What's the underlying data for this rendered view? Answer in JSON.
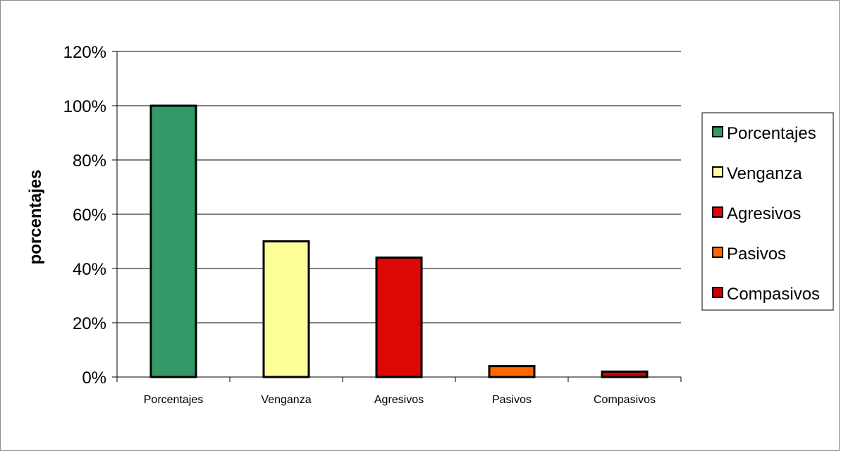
{
  "chart_data": {
    "type": "bar",
    "title": "",
    "xlabel": "",
    "ylabel": "porcentajes",
    "ylim": [
      0,
      1.2
    ],
    "y_ticks": [
      "0%",
      "20%",
      "40%",
      "60%",
      "80%",
      "100%",
      "120%"
    ],
    "y_tick_values": [
      0,
      0.2,
      0.4,
      0.6,
      0.8,
      1.0,
      1.2
    ],
    "grid": true,
    "legend_position": "right",
    "categories": [
      "Porcentajes",
      "Venganza",
      "Agresivos",
      "Pasivos",
      "Compasivos"
    ],
    "values": [
      1.0,
      0.5,
      0.44,
      0.04,
      0.02
    ],
    "colors": [
      "#339966",
      "#ffff99",
      "#dd0806",
      "#ff6600",
      "#cc0000"
    ],
    "legend": [
      {
        "label": "Porcentajes",
        "color": "#339966"
      },
      {
        "label": "Venganza",
        "color": "#ffff99"
      },
      {
        "label": "Agresivos",
        "color": "#dd0806"
      },
      {
        "label": "Pasivos",
        "color": "#ff6600"
      },
      {
        "label": "Compasivos",
        "color": "#cc0000"
      }
    ]
  }
}
